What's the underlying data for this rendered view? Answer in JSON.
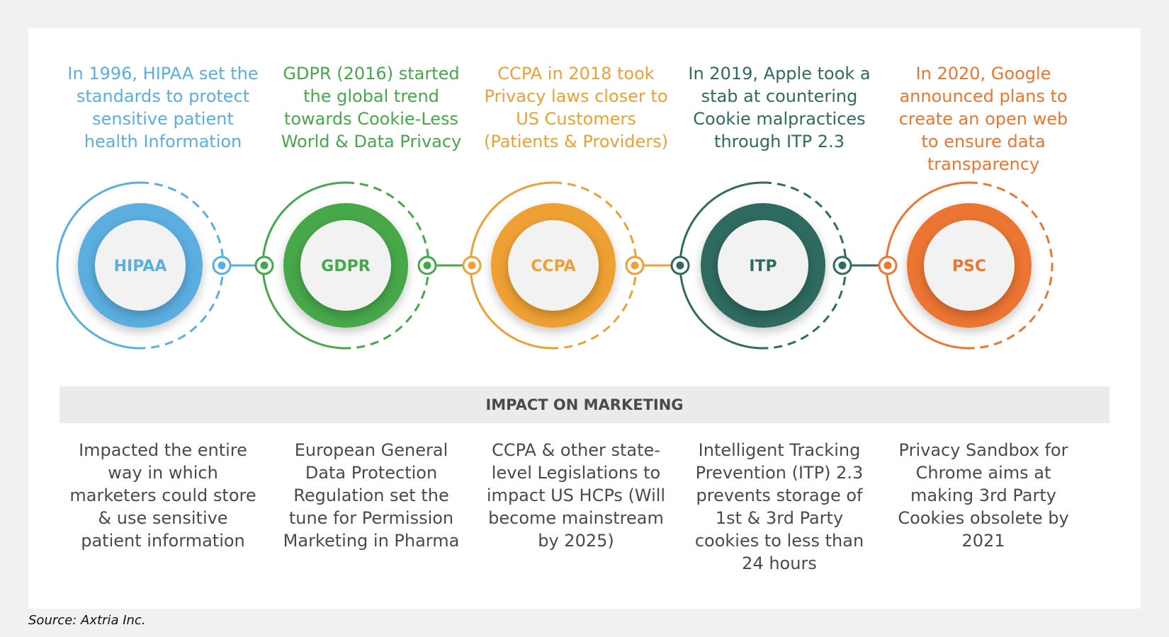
{
  "milestones": [
    {
      "label": "HIPAA",
      "color": "#5aaee0",
      "text": "In 1996, HIPAA set the standards to protect sensitive patient health Information",
      "impact": "Impacted the entire way in which marketers could store & use sensitive patient information"
    },
    {
      "label": "GDPR",
      "color": "#46a84a",
      "text": "GDPR (2016) started the global trend towards Cookie-Less World & Data Privacy",
      "impact": "European General Data Protection Regulation set the tune for Permission Marketing in Pharma"
    },
    {
      "label": "CCPA",
      "color": "#eea033",
      "text": "CCPA in 2018 took Privacy laws closer to US Customers (Patients & Providers)",
      "impact": "CCPA & other state-level Legislations to impact US HCPs (Will become mainstream by 2025)"
    },
    {
      "label": "ITP",
      "color": "#2f6b5f",
      "text": "In 2019, Apple took a stab at countering Cookie malpractices through ITP 2.3",
      "impact": "Intelligent Tracking Prevention (ITP) 2.3 prevents storage of 1st & 3rd Party cookies to less than 24 hours"
    },
    {
      "label": "PSC",
      "color": "#ec7530",
      "text": "In 2020, Google announced plans to create an open web to ensure data transparency",
      "impact": "Privacy Sandbox for Chrome aims at making 3rd Party Cookies obsolete by 2021"
    }
  ],
  "impact_header": "IMPACT ON MARKETING",
  "source": {
    "prefix": "Source: ",
    "name": "Axtria Inc."
  }
}
